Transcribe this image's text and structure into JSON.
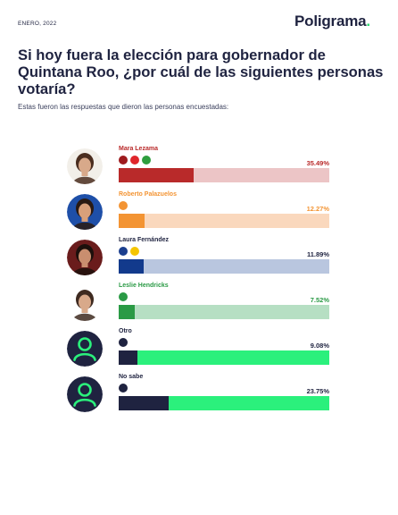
{
  "header": {
    "date": "ENERO, 2022",
    "brand": "Poligrama",
    "brand_dot": "."
  },
  "title": "Si hoy fuera la elección para gobernador de Quintana Roo, ¿por cuál de las siguientes personas votaría?",
  "subtitle": "Estas fueron las respuestas que dieron las personas encuestadas:",
  "colors": {
    "navy": "#1f2340",
    "green": "#2bd96f"
  },
  "chart_data": {
    "type": "bar",
    "orientation": "horizontal",
    "xlim": [
      0,
      100
    ],
    "unit": "%",
    "categories": [
      "Mara Lezama",
      "Roberto Palazuelos",
      "Laura Fernández",
      "Leslie Hendricks",
      "Otro",
      "No sabe"
    ],
    "values": [
      35.49,
      12.27,
      11.89,
      7.52,
      9.08,
      23.75
    ],
    "labels": [
      "35.49%",
      "12.27%",
      "11.89%",
      "7.52%",
      "9.08%",
      "23.75%"
    ],
    "items": [
      {
        "name": "Mara Lezama",
        "value": 35.49,
        "label": "35.49%",
        "color": "#b92a2a",
        "track": "#ecc5c6",
        "name_color": "#b92a2a",
        "avatar": "photo",
        "skin": "#d8a98a",
        "hair": "#4a2d1f",
        "bg": "#f2efe9",
        "logos": [
          {
            "icon": "morena-logo",
            "text": "MOR",
            "bg": "#9e1b1e"
          },
          {
            "icon": "pt-logo",
            "text": "PT",
            "bg": "#e0262b"
          },
          {
            "icon": "pvem-logo",
            "text": "V",
            "bg": "#2e9e3e"
          }
        ]
      },
      {
        "name": "Roberto Palazuelos",
        "value": 12.27,
        "label": "12.27%",
        "color": "#f39433",
        "track": "#fad8bd",
        "name_color": "#f39433",
        "avatar": "photo",
        "skin": "#d9a07a",
        "hair": "#2a1a12",
        "bg": "#1e4fa8",
        "logos": [
          {
            "icon": "mc-logo",
            "text": "MC",
            "bg": "#f39433"
          }
        ]
      },
      {
        "name": "Laura Fernández",
        "value": 11.89,
        "label": "11.89%",
        "color": "#123a8c",
        "track": "#b9c6df",
        "name_color": "#1f2340",
        "avatar": "photo",
        "skin": "#c98e6f",
        "hair": "#1c100c",
        "bg": "#6a1c1c",
        "logos": [
          {
            "icon": "pan-logo",
            "text": "PAN",
            "bg": "#1b3f8f"
          },
          {
            "icon": "prd-logo",
            "text": "PRD",
            "bg": "#f5c500"
          }
        ]
      },
      {
        "name": "Leslie Hendricks",
        "value": 7.52,
        "label": "7.52%",
        "color": "#2a9a45",
        "track": "#b6dfc3",
        "name_color": "#2a9a45",
        "avatar": "photo",
        "skin": "#d8a98a",
        "hair": "#3e2a20",
        "bg": "#ffffff",
        "logos": [
          {
            "icon": "pri-logo",
            "text": "PRI",
            "bg": "#2a9a45"
          }
        ]
      },
      {
        "name": "Otro",
        "value": 9.08,
        "label": "9.08%",
        "color": "#1f2340",
        "track": "#2bf07c",
        "name_color": "#1f2340",
        "avatar": "person-icon",
        "logos": [
          {
            "icon": "otro-logo",
            "text": "O",
            "bg": "#1f2340"
          }
        ]
      },
      {
        "name": "No sabe",
        "value": 23.75,
        "label": "23.75%",
        "color": "#1f2340",
        "track": "#2bf07c",
        "name_color": "#1f2340",
        "avatar": "person-icon",
        "logos": [
          {
            "icon": "nosabe-logo",
            "text": "N",
            "bg": "#1f2340"
          }
        ]
      }
    ]
  }
}
